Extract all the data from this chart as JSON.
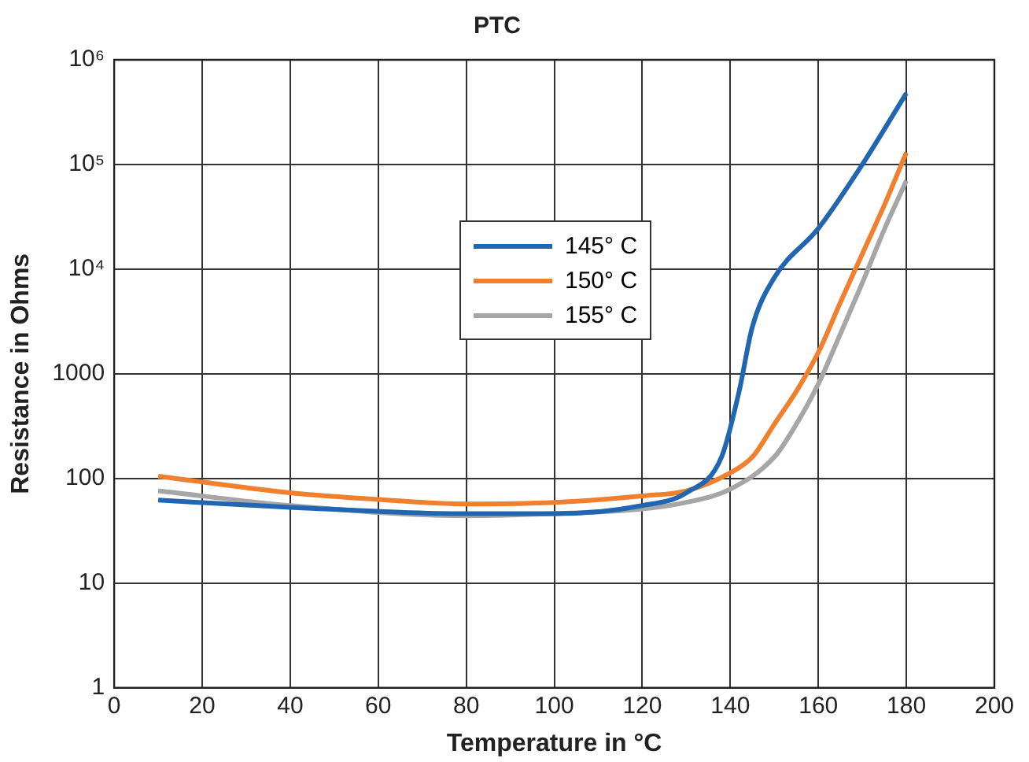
{
  "chart_data": {
    "type": "line",
    "title": "PTC",
    "xlabel": "Temperature in °C",
    "ylabel": "Resistance in Ohms",
    "log": "y",
    "grid": true,
    "legend": "top",
    "marker": "none",
    "line_style": "solid",
    "xlim": [
      0,
      200
    ],
    "xticks": [
      0,
      20,
      40,
      60,
      80,
      100,
      120,
      140,
      160,
      180,
      200
    ],
    "ylim": [
      1,
      1000000
    ],
    "yticks": [
      1,
      10,
      100,
      1000,
      {
        "value": 10000,
        "label": "10⁴"
      },
      {
        "value": 100000,
        "label": "10⁵"
      },
      {
        "value": 1000000,
        "label": "10⁶"
      }
    ],
    "series": [
      {
        "name": "145° C",
        "color": "#2166b0",
        "x": [
          10,
          40,
          80,
          100,
          120,
          130,
          138,
          142,
          145,
          150,
          160,
          170,
          180
        ],
        "values": [
          62,
          53,
          46,
          46,
          55,
          73,
          160,
          680,
          2800,
          8300,
          24500,
          100000,
          480000
        ]
      },
      {
        "name": "150° C",
        "color": "#f07f2e",
        "x": [
          10,
          40,
          60,
          80,
          100,
          120,
          130,
          140,
          145,
          150,
          155,
          160,
          165,
          170,
          175,
          180
        ],
        "values": [
          105,
          73,
          63,
          57,
          59,
          68,
          76,
          113,
          160,
          330,
          680,
          1600,
          4800,
          14000,
          41000,
          130000
        ]
      },
      {
        "name": "155° C",
        "color": "#a6a6a6",
        "x": [
          10,
          40,
          80,
          100,
          120,
          130,
          140,
          150,
          155,
          160,
          165,
          170,
          175,
          180
        ],
        "values": [
          76,
          55,
          44,
          46,
          51,
          59,
          79,
          160,
          330,
          800,
          2400,
          7400,
          24000,
          70000
        ]
      }
    ]
  }
}
